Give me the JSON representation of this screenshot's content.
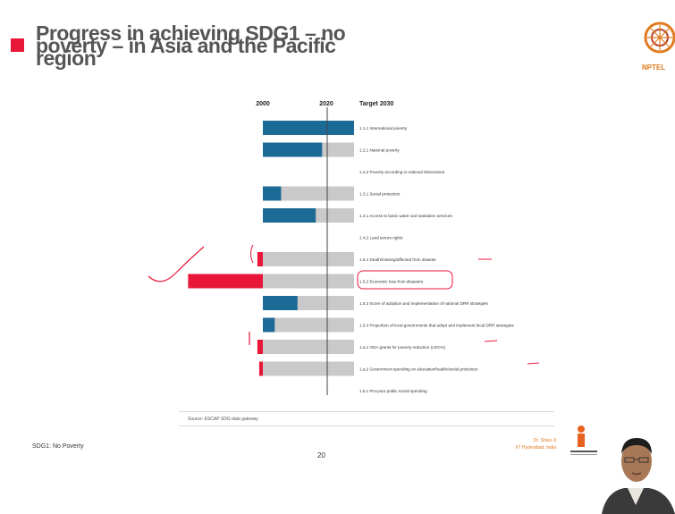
{
  "slide": {
    "title": "Progress in achieving SDG1 – no poverty – in Asia and the Pacific region",
    "logo_text": "NPTEL",
    "source": "Source: ESCAP SDG data gateway",
    "footer_left": "SDG1: No Poverty",
    "page_number": "20",
    "presenter_line1": "Dr. Shiva Ji",
    "presenter_line2": "IIT Hyderabad, India"
  },
  "colors": {
    "accent_red": "#e8173a",
    "bar_blue": "#1b6b96",
    "bar_gray": "#c9c9c9",
    "baseline": "#444444",
    "annotation": "#e8173a",
    "nptel_orange": "#e07a1f"
  },
  "chart_data": {
    "type": "bar",
    "title": "",
    "column_headers": [
      "2000",
      "2020",
      "Target 2030"
    ],
    "track_max": 1.0,
    "categories": [
      "1.1.1 International poverty",
      "1.2.1 National poverty",
      "1.2.2 Poverty according to national dimensions",
      "1.3.1 Social protection",
      "1.4.1 Access to basic water and sanitation services",
      "1.4.2 Land tenure rights",
      "1.5.1 Death/missing/affected from disaster",
      "1.5.2 Economic loss from disasters",
      "1.5.3 Score of adoption and implementation of national DRR strategies",
      "1.5.4 Proportion of local governments that adopt and implement local DRR strategies",
      "1.a.1 ODA grants for poverty reduction (LDC%)",
      "1.a.2 Government spending on education/health/social protection",
      "1.b.1 Pro-poor public social spending"
    ],
    "series": [
      {
        "values": [
          1.0,
          0.65,
          null,
          0.2,
          0.58,
          null,
          -0.06,
          -0.82,
          0.38,
          0.13,
          -0.06,
          -0.04,
          null
        ],
        "has_track": [
          true,
          true,
          false,
          true,
          true,
          false,
          true,
          true,
          true,
          true,
          true,
          true,
          false
        ]
      }
    ],
    "annotations": [
      "checkmark",
      "underline",
      "circle-highlight",
      "tick-marks"
    ]
  }
}
